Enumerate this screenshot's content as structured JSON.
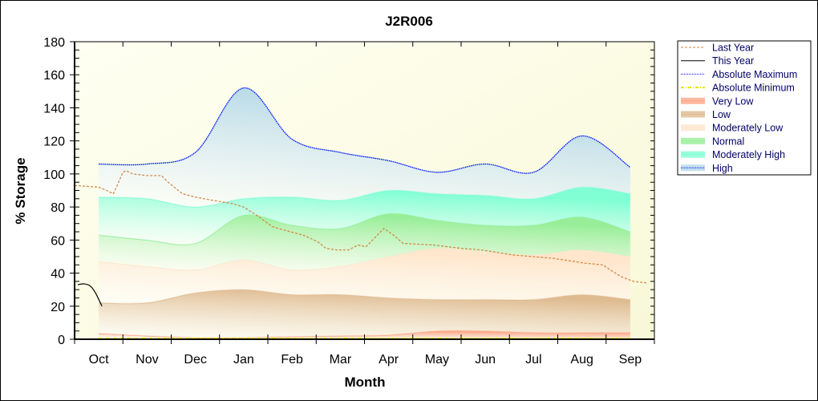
{
  "chart_data": {
    "type": "area",
    "title": "J2R006",
    "xlabel": "Month",
    "ylabel": "% Storage",
    "ylim": [
      0,
      180
    ],
    "yticks": [
      0,
      20,
      40,
      60,
      80,
      100,
      120,
      140,
      160,
      180
    ],
    "categories": [
      "Oct",
      "Nov",
      "Dec",
      "Jan",
      "Feb",
      "Mar",
      "Apr",
      "May",
      "Jun",
      "Jul",
      "Aug",
      "Sep"
    ],
    "grid": false,
    "legend_placement": "right",
    "bands": {
      "x": [
        "Oct 16",
        "Nov 16",
        "Dec 16",
        "Jan 16",
        "Feb 16",
        "Mar 16",
        "Apr 16",
        "May 16",
        "Jun 16",
        "Jul 16",
        "Aug 16",
        "Sep 16"
      ],
      "series": [
        {
          "name": "Very Low",
          "color": "#ffa888",
          "upper": [
            3.5,
            2,
            1,
            1,
            1.5,
            2,
            2.5,
            5,
            5,
            4,
            4,
            4
          ]
        },
        {
          "name": "Low",
          "color": "#dfbb90",
          "upper": [
            22,
            22,
            28,
            30,
            27,
            27,
            25,
            24,
            24,
            24,
            27,
            24
          ]
        },
        {
          "name": "Moderately Low",
          "color": "#ffe6cc",
          "upper": [
            47,
            44,
            42,
            48,
            42,
            44,
            50,
            55,
            53,
            51,
            54,
            50
          ]
        },
        {
          "name": "Normal",
          "color": "#98ee98",
          "upper": [
            63,
            60,
            58,
            75,
            69,
            67,
            76,
            72,
            69,
            69,
            74,
            65
          ]
        },
        {
          "name": "Moderately High",
          "color": "#80ffd4",
          "upper": [
            86,
            85,
            80,
            85,
            86,
            84,
            90,
            88,
            87,
            85,
            92,
            88
          ]
        },
        {
          "name": "High",
          "color": "#b4d8e6",
          "upper": [
            106,
            106,
            113,
            152,
            121,
            113,
            108,
            101,
            106,
            101,
            123,
            104
          ]
        }
      ]
    },
    "lines": [
      {
        "name": "Absolute Maximum",
        "color": "#0000ff",
        "style": "dotted",
        "x": [
          "Oct 16",
          "Nov 16",
          "Dec 16",
          "Jan 16",
          "Feb 16",
          "Mar 16",
          "Apr 16",
          "May 16",
          "Jun 16",
          "Jul 16",
          "Aug 16",
          "Sep 16"
        ],
        "y": [
          106,
          106,
          113,
          152,
          121,
          113,
          108,
          101,
          106,
          101,
          123,
          104
        ]
      },
      {
        "name": "Absolute Minimum",
        "color": "#ffff00",
        "style": "dash-dot",
        "x": [
          "Oct 16",
          "Sep 16"
        ],
        "y": [
          0.5,
          0.5
        ]
      },
      {
        "name": "Last Year",
        "color": "#d2823c",
        "style": "dashed",
        "x": [
          "Oct 1",
          "Oct 16",
          "Oct 21",
          "Oct 25",
          "Oct 27",
          "Nov 1",
          "Nov 3",
          "Nov 7",
          "Nov 16",
          "Nov 25",
          "Nov 29",
          "Dec 8",
          "Dec 16",
          "Dec 27",
          "Jan 9",
          "Jan 16",
          "Jan 24",
          "Feb 4",
          "Feb 15",
          "Feb 23",
          "Mar 2",
          "Mar 7",
          "Mar 14",
          "Mar 21",
          "Mar 27",
          "Apr 2",
          "Apr 8",
          "Apr 13",
          "Apr 19",
          "Apr 25",
          "May 14",
          "Jun 1",
          "Jun 14",
          "Jul 3",
          "Jul 28",
          "Aug 18",
          "Aug 29",
          "Sep 2",
          "Sep 10",
          "Sep 18",
          "Sep 27"
        ],
        "y": [
          93,
          92,
          90,
          88,
          92,
          101,
          102,
          100,
          99,
          99,
          95,
          88,
          86,
          84,
          82,
          80,
          75,
          68,
          65,
          63,
          59,
          55,
          54,
          54,
          57,
          56,
          62,
          67,
          63,
          58,
          57,
          55,
          54,
          51,
          49,
          46,
          45,
          43,
          38,
          35,
          34
        ]
      },
      {
        "name": "This Year",
        "color": "#000000",
        "style": "solid",
        "x": [
          "Oct 3",
          "Oct 7",
          "Oct 11",
          "Oct 14",
          "Oct 18"
        ],
        "y": [
          33,
          33.5,
          32,
          28,
          20
        ]
      }
    ],
    "legend": [
      {
        "label": "Last Year",
        "kind": "line",
        "color": "#d2823c",
        "dash": "3,2"
      },
      {
        "label": "This Year",
        "kind": "line",
        "color": "#000000",
        "dash": ""
      },
      {
        "label": "Absolute Maximum",
        "kind": "line",
        "color": "#0000ff",
        "dash": "1,1"
      },
      {
        "label": "Absolute Minimum",
        "kind": "line",
        "color": "#e6e600",
        "dash": "4,2,1,2"
      },
      {
        "label": "Very Low",
        "kind": "band",
        "color": "#ffa888"
      },
      {
        "label": "Low",
        "kind": "band",
        "color": "#dfbb90"
      },
      {
        "label": "Moderately Low",
        "kind": "band",
        "color": "#ffe6cc"
      },
      {
        "label": "Normal",
        "kind": "band",
        "color": "#98ee98"
      },
      {
        "label": "Moderately High",
        "kind": "band",
        "color": "#80ffd4"
      },
      {
        "label": "High",
        "kind": "band",
        "color": "#b4d8e6"
      }
    ]
  }
}
